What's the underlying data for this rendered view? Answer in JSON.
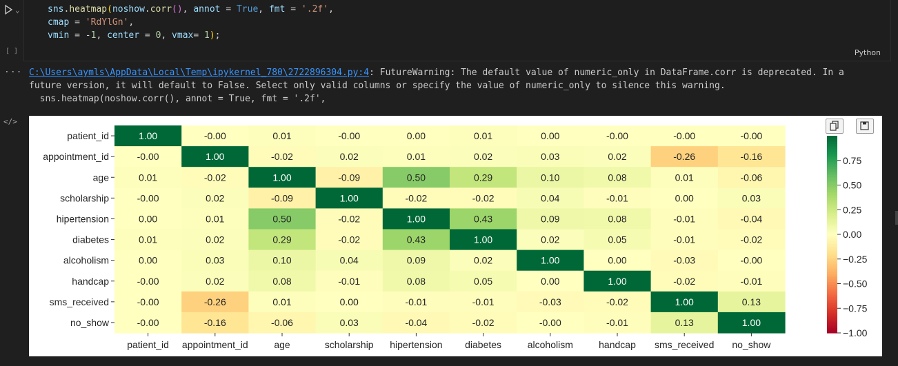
{
  "code_cell": {
    "lines": [
      "sns.heatmap(noshow.corr(), annot = True, fmt = '.2f',",
      "cmap = 'RdYlGn',",
      "vmin = -1, center = 0, vmax= 1);"
    ],
    "execution_count": "[ ]",
    "language": "Python"
  },
  "output": {
    "dots": "...",
    "warning_link": "C:\\Users\\aymls\\AppData\\Local\\Temp\\ipykernel_780\\2722896304.py:4",
    "warning_text": ": FutureWarning: The default value of numeric_only in DataFrame.corr is deprecated. In a future version, it will default to False. Select only valid columns or specify the value of numeric_only to silence this warning.",
    "warning_code": "  sns.heatmap(noshow.corr(), annot = True, fmt = '.2f',",
    "code_icon": "</>"
  },
  "icons": [
    "run-icon",
    "chevron-down-icon",
    "copy-icon",
    "save-icon",
    "code-icon"
  ],
  "chart_data": {
    "type": "heatmap",
    "rows": [
      "patient_id",
      "appointment_id",
      "age",
      "scholarship",
      "hipertension",
      "diabetes",
      "alcoholism",
      "handcap",
      "sms_received",
      "no_show"
    ],
    "columns": [
      "patient_id",
      "appointment_id",
      "age",
      "scholarship",
      "hipertension",
      "diabetes",
      "alcoholism",
      "handcap",
      "sms_received",
      "no_show"
    ],
    "values": [
      [
        1.0,
        -0.0,
        0.01,
        -0.0,
        0.0,
        0.01,
        0.0,
        -0.0,
        -0.0,
        -0.0
      ],
      [
        -0.0,
        1.0,
        -0.02,
        0.02,
        0.01,
        0.02,
        0.03,
        0.02,
        -0.26,
        -0.16
      ],
      [
        0.01,
        -0.02,
        1.0,
        -0.09,
        0.5,
        0.29,
        0.1,
        0.08,
        0.01,
        -0.06
      ],
      [
        -0.0,
        0.02,
        -0.09,
        1.0,
        -0.02,
        -0.02,
        0.04,
        -0.01,
        0.0,
        0.03
      ],
      [
        0.0,
        0.01,
        0.5,
        -0.02,
        1.0,
        0.43,
        0.09,
        0.08,
        -0.01,
        -0.04
      ],
      [
        0.01,
        0.02,
        0.29,
        -0.02,
        0.43,
        1.0,
        0.02,
        0.05,
        -0.01,
        -0.02
      ],
      [
        0.0,
        0.03,
        0.1,
        0.04,
        0.09,
        0.02,
        1.0,
        0.0,
        -0.03,
        -0.0
      ],
      [
        -0.0,
        0.02,
        0.08,
        -0.01,
        0.08,
        0.05,
        0.0,
        1.0,
        -0.02,
        -0.01
      ],
      [
        -0.0,
        -0.26,
        0.01,
        0.0,
        -0.01,
        -0.01,
        -0.03,
        -0.02,
        1.0,
        0.13
      ],
      [
        -0.0,
        -0.16,
        -0.06,
        0.03,
        -0.04,
        -0.02,
        -0.0,
        -0.01,
        0.13,
        1.0
      ]
    ],
    "colormap": "RdYlGn",
    "vmin": -1,
    "center": 0,
    "vmax": 1,
    "colorbar_ticks": [
      0.75,
      0.5,
      0.25,
      0.0,
      -0.25,
      -0.5,
      -0.75,
      -1.0
    ],
    "colorbar_tick_labels": [
      "0.75",
      "0.50",
      "0.25",
      "0.00",
      "−0.25",
      "−0.50",
      "−0.75",
      "−1.00"
    ],
    "annot_format": ".2f"
  }
}
